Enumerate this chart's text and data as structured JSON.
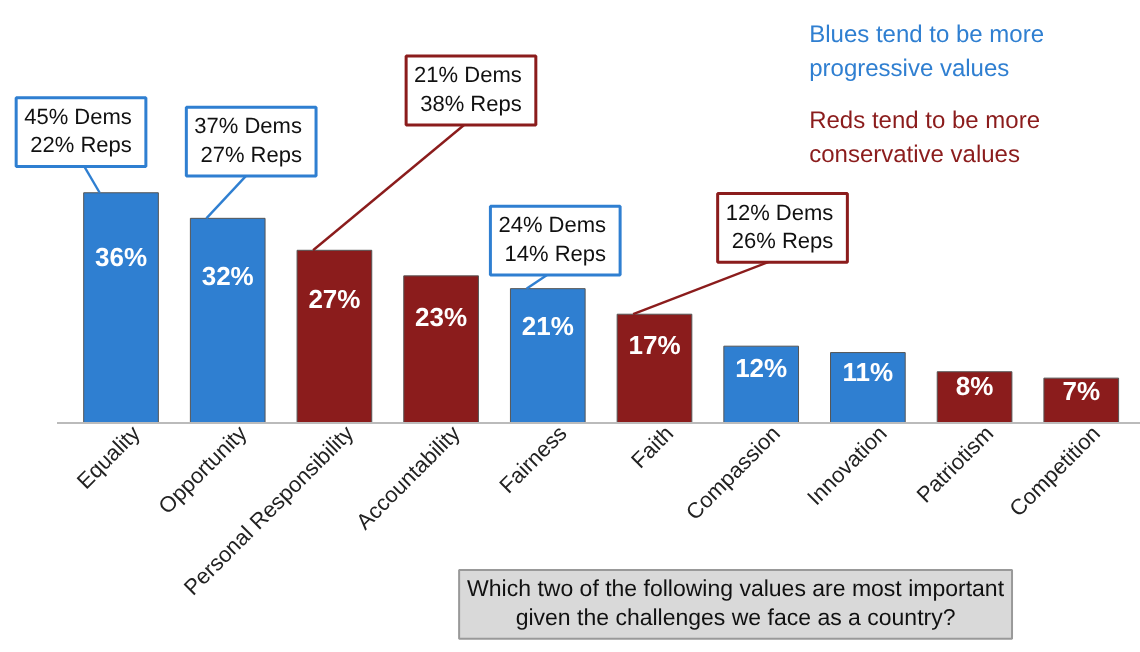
{
  "chart_data": {
    "type": "bar",
    "categories": [
      "Equality",
      "Opportunity",
      "Personal Responsibility",
      "Accountability",
      "Fairness",
      "Faith",
      "Compassion",
      "Innovation",
      "Patriotism",
      "Competition"
    ],
    "values": [
      36,
      32,
      27,
      23,
      21,
      17,
      12,
      11,
      8,
      7
    ],
    "colors": [
      "#2f7fd1",
      "#2f7fd1",
      "#8b1c1c",
      "#8b1c1c",
      "#2f7fd1",
      "#8b1c1c",
      "#2f7fd1",
      "#2f7fd1",
      "#8b1c1c",
      "#8b1c1c"
    ],
    "value_labels": [
      "36%",
      "32%",
      "27%",
      "23%",
      "21%",
      "17%",
      "12%",
      "11%",
      "8%",
      "7%"
    ],
    "annotations": [
      {
        "text": "45%  Dems\n22% Reps",
        "x": "Equality",
        "y": 36
      },
      {
        "text": "37%  Dems\n27% Reps",
        "x": "Opportunity",
        "y": 32
      },
      {
        "text": "21%  Dems\n38% Reps",
        "x": "Personal Responsibility",
        "y": 27
      },
      {
        "text": "24%  Dems\n14% Reps",
        "x": "Fairness",
        "y": 21
      },
      {
        "text": "12%  Dems\n26% Reps",
        "x": "Faith",
        "y": 17
      },
      "Blues tend to be more\nprogressive values",
      "Reds tend to be more\nconservative values",
      "Which two of the following values are most important\ngiven the challenges we face as a country?"
    ]
  }
}
